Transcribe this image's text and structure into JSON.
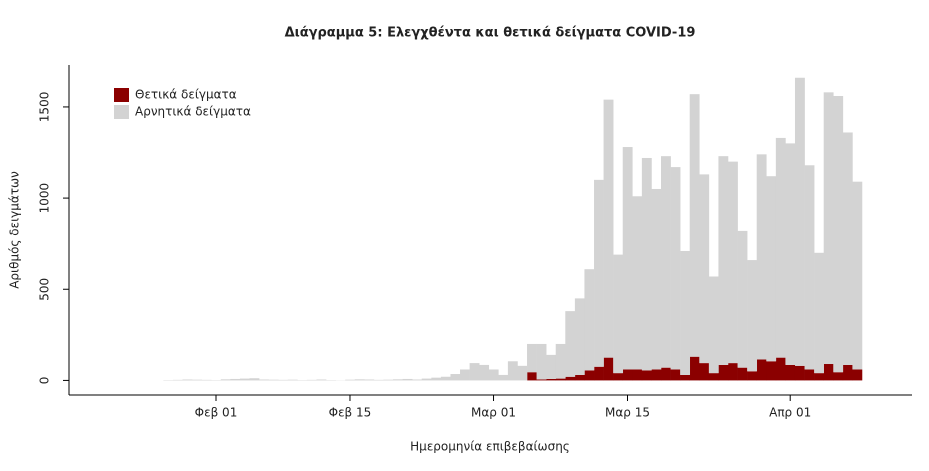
{
  "chart_data": {
    "type": "stacked_bar",
    "title": "Διάγραμμα 5: Ελεγχθέντα και θετικά δείγματα COVID-19",
    "x_label": "Ημερομηνία επιβεβαίωσης",
    "y_label": "Αριθμός δειγμάτων",
    "categories": [
      null,
      null,
      null,
      null,
      null,
      null,
      "Φεβ 01",
      null,
      null,
      null,
      null,
      null,
      null,
      null,
      null,
      null,
      null,
      null,
      null,
      null,
      "Φεβ 15",
      null,
      null,
      null,
      null,
      null,
      null,
      null,
      null,
      null,
      null,
      null,
      null,
      null,
      null,
      "Μαρ 01",
      null,
      null,
      null,
      null,
      null,
      null,
      null,
      null,
      null,
      null,
      null,
      null,
      null,
      "Μαρ 15",
      null,
      null,
      null,
      null,
      null,
      null,
      null,
      null,
      null,
      null,
      null,
      null,
      null,
      null,
      null,
      null,
      "Απρ 01",
      null,
      null,
      null,
      null,
      null,
      null,
      null
    ],
    "series": [
      {
        "name": "Θετικά δείγματα",
        "color": "#8b0000",
        "values": [
          0,
          0,
          0,
          0,
          0,
          0,
          0,
          0,
          0,
          0,
          0,
          0,
          0,
          0,
          0,
          0,
          0,
          0,
          0,
          0,
          0,
          0,
          0,
          0,
          0,
          0,
          0,
          0,
          0,
          0,
          0,
          0,
          0,
          0,
          0,
          0,
          0,
          0,
          0,
          45,
          5,
          8,
          10,
          20,
          30,
          55,
          75,
          125,
          40,
          60,
          60,
          55,
          60,
          70,
          60,
          30,
          130,
          95,
          40,
          85,
          95,
          70,
          50,
          115,
          105,
          125,
          85,
          80,
          60,
          40,
          90,
          45,
          85,
          60
        ]
      },
      {
        "name": "Αρνητικά δείγματα",
        "color": "#d3d3d3",
        "values": [
          0,
          2,
          3,
          5,
          4,
          3,
          2,
          6,
          8,
          10,
          12,
          5,
          4,
          3,
          4,
          2,
          3,
          5,
          2,
          1,
          4,
          6,
          5,
          3,
          4,
          6,
          8,
          5,
          10,
          15,
          20,
          35,
          60,
          95,
          85,
          60,
          30,
          105,
          80,
          155,
          195,
          132,
          190,
          360,
          420,
          555,
          1025,
          1415,
          650,
          1220,
          950,
          1165,
          990,
          1160,
          1110,
          680,
          1440,
          1035,
          530,
          1145,
          1105,
          750,
          610,
          1125,
          1015,
          1205,
          1215,
          1580,
          1120,
          660,
          1490,
          1515,
          1275,
          1030
        ]
      }
    ],
    "ylim": [
      -80,
      1730
    ],
    "yticks": [
      0,
      500,
      1000,
      1500
    ],
    "legend": "top-left"
  }
}
